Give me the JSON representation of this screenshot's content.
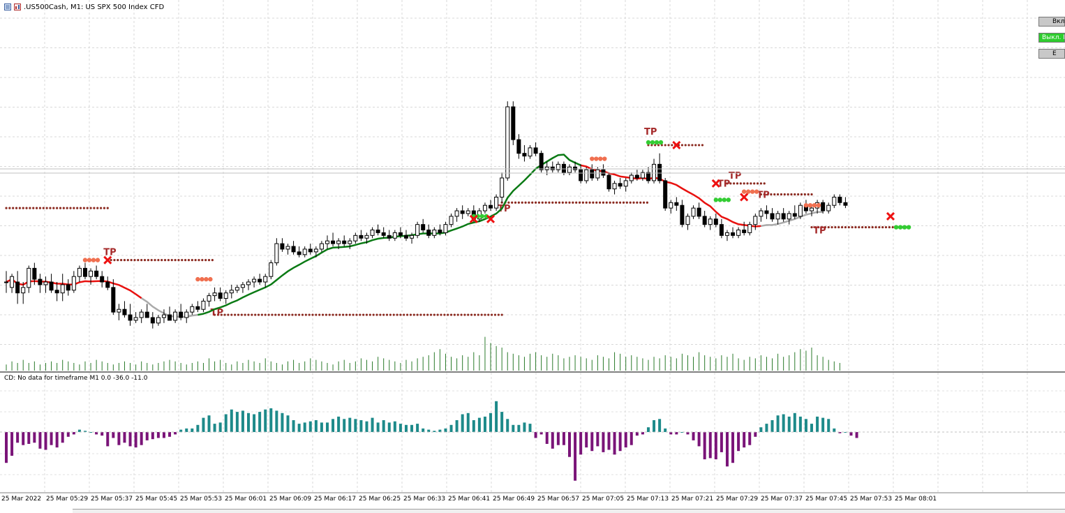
{
  "window": {
    "title": ".US500Cash, M1:  US SPX 500 Index CFD",
    "icons": [
      "chart-window-icon",
      "symbol-icon"
    ]
  },
  "subwindow": {
    "title": "CD: No data for timeframe M1 0.0 -36.0 -11.0"
  },
  "panel": {
    "buttons": [
      {
        "label": "Вкл",
        "state": "grey"
      },
      {
        "label": "Выкл. E",
        "state": "green"
      },
      {
        "label": "E",
        "state": "grey"
      }
    ]
  },
  "markers": {
    "tp_label": "TP"
  },
  "colors": {
    "bull_candle": "#ffffff",
    "bear_candle": "#000000",
    "ma_red": "#e8110f",
    "ma_green": "#0a7a14",
    "ma_grey": "#aaaaaa",
    "volume": "#2a7a2a",
    "hist_pos": "#1d8a8a",
    "hist_neg": "#7a1478",
    "tp_dots": "#8b2a20",
    "entry_red": "#f07050",
    "entry_green": "#33cc33",
    "cross": "#ee1111"
  },
  "time_axis": {
    "labels": [
      "25 Mar 2022",
      "25 Mar 05:29",
      "25 Mar 05:37",
      "25 Mar 05:45",
      "25 Mar 05:53",
      "25 Mar 06:01",
      "25 Mar 06:09",
      "25 Mar 06:17",
      "25 Mar 06:25",
      "25 Mar 06:33",
      "25 Mar 06:41",
      "25 Mar 06:49",
      "25 Mar 06:57",
      "25 Mar 07:05",
      "25 Mar 07:13",
      "25 Mar 07:21",
      "25 Mar 07:29",
      "25 Mar 07:37",
      "25 Mar 07:45",
      "25 Mar 07:53",
      "25 Mar 08:01"
    ]
  },
  "chart_data": {
    "type": "candlestick",
    "timeframe": "M1",
    "ohlc": [
      {
        "o": 0.7,
        "h": 0.74,
        "l": 0.66,
        "c": 0.7
      },
      {
        "o": 0.68,
        "h": 0.73,
        "l": 0.66,
        "c": 0.72
      },
      {
        "o": 0.7,
        "h": 0.74,
        "l": 0.62,
        "c": 0.66
      },
      {
        "o": 0.66,
        "h": 0.7,
        "l": 0.62,
        "c": 0.68
      },
      {
        "o": 0.68,
        "h": 0.76,
        "l": 0.66,
        "c": 0.75
      },
      {
        "o": 0.75,
        "h": 0.77,
        "l": 0.69,
        "c": 0.71
      },
      {
        "o": 0.71,
        "h": 0.73,
        "l": 0.66,
        "c": 0.69
      },
      {
        "o": 0.69,
        "h": 0.72,
        "l": 0.66,
        "c": 0.7
      },
      {
        "o": 0.7,
        "h": 0.73,
        "l": 0.66,
        "c": 0.67
      },
      {
        "o": 0.67,
        "h": 0.7,
        "l": 0.63,
        "c": 0.66
      },
      {
        "o": 0.66,
        "h": 0.73,
        "l": 0.63,
        "c": 0.69
      },
      {
        "o": 0.69,
        "h": 0.71,
        "l": 0.65,
        "c": 0.67
      },
      {
        "o": 0.67,
        "h": 0.74,
        "l": 0.66,
        "c": 0.72
      },
      {
        "o": 0.72,
        "h": 0.76,
        "l": 0.7,
        "c": 0.75
      },
      {
        "o": 0.75,
        "h": 0.77,
        "l": 0.71,
        "c": 0.72
      },
      {
        "o": 0.72,
        "h": 0.75,
        "l": 0.69,
        "c": 0.74
      },
      {
        "o": 0.74,
        "h": 0.76,
        "l": 0.71,
        "c": 0.72
      },
      {
        "o": 0.72,
        "h": 0.74,
        "l": 0.68,
        "c": 0.7
      },
      {
        "o": 0.7,
        "h": 0.72,
        "l": 0.67,
        "c": 0.68
      },
      {
        "o": 0.68,
        "h": 0.71,
        "l": 0.58,
        "c": 0.59
      },
      {
        "o": 0.59,
        "h": 0.62,
        "l": 0.56,
        "c": 0.6
      },
      {
        "o": 0.6,
        "h": 0.63,
        "l": 0.57,
        "c": 0.58
      },
      {
        "o": 0.58,
        "h": 0.62,
        "l": 0.54,
        "c": 0.56
      },
      {
        "o": 0.56,
        "h": 0.59,
        "l": 0.55,
        "c": 0.57
      },
      {
        "o": 0.57,
        "h": 0.6,
        "l": 0.55,
        "c": 0.59
      },
      {
        "o": 0.59,
        "h": 0.62,
        "l": 0.57,
        "c": 0.57
      },
      {
        "o": 0.57,
        "h": 0.59,
        "l": 0.53,
        "c": 0.55
      },
      {
        "o": 0.55,
        "h": 0.58,
        "l": 0.54,
        "c": 0.57
      },
      {
        "o": 0.57,
        "h": 0.6,
        "l": 0.55,
        "c": 0.58
      },
      {
        "o": 0.58,
        "h": 0.61,
        "l": 0.56,
        "c": 0.56
      },
      {
        "o": 0.56,
        "h": 0.6,
        "l": 0.55,
        "c": 0.59
      },
      {
        "o": 0.59,
        "h": 0.62,
        "l": 0.56,
        "c": 0.57
      },
      {
        "o": 0.57,
        "h": 0.6,
        "l": 0.55,
        "c": 0.59
      },
      {
        "o": 0.59,
        "h": 0.62,
        "l": 0.58,
        "c": 0.61
      },
      {
        "o": 0.61,
        "h": 0.63,
        "l": 0.59,
        "c": 0.6
      },
      {
        "o": 0.6,
        "h": 0.64,
        "l": 0.59,
        "c": 0.63
      },
      {
        "o": 0.63,
        "h": 0.66,
        "l": 0.61,
        "c": 0.65
      },
      {
        "o": 0.65,
        "h": 0.68,
        "l": 0.63,
        "c": 0.66
      },
      {
        "o": 0.66,
        "h": 0.68,
        "l": 0.63,
        "c": 0.64
      },
      {
        "o": 0.64,
        "h": 0.67,
        "l": 0.62,
        "c": 0.66
      },
      {
        "o": 0.66,
        "h": 0.69,
        "l": 0.64,
        "c": 0.67
      },
      {
        "o": 0.67,
        "h": 0.69,
        "l": 0.66,
        "c": 0.68
      },
      {
        "o": 0.68,
        "h": 0.7,
        "l": 0.66,
        "c": 0.69
      },
      {
        "o": 0.69,
        "h": 0.71,
        "l": 0.67,
        "c": 0.7
      },
      {
        "o": 0.7,
        "h": 0.72,
        "l": 0.68,
        "c": 0.71
      },
      {
        "o": 0.71,
        "h": 0.73,
        "l": 0.69,
        "c": 0.7
      },
      {
        "o": 0.7,
        "h": 0.73,
        "l": 0.68,
        "c": 0.72
      },
      {
        "o": 0.72,
        "h": 0.78,
        "l": 0.71,
        "c": 0.77
      },
      {
        "o": 0.77,
        "h": 0.86,
        "l": 0.76,
        "c": 0.84
      },
      {
        "o": 0.84,
        "h": 0.86,
        "l": 0.81,
        "c": 0.82
      },
      {
        "o": 0.82,
        "h": 0.84,
        "l": 0.8,
        "c": 0.83
      },
      {
        "o": 0.83,
        "h": 0.85,
        "l": 0.8,
        "c": 0.81
      },
      {
        "o": 0.81,
        "h": 0.83,
        "l": 0.79,
        "c": 0.8
      },
      {
        "o": 0.8,
        "h": 0.83,
        "l": 0.79,
        "c": 0.82
      },
      {
        "o": 0.82,
        "h": 0.84,
        "l": 0.8,
        "c": 0.81
      },
      {
        "o": 0.81,
        "h": 0.83,
        "l": 0.79,
        "c": 0.82
      },
      {
        "o": 0.82,
        "h": 0.85,
        "l": 0.81,
        "c": 0.84
      },
      {
        "o": 0.84,
        "h": 0.87,
        "l": 0.82,
        "c": 0.85
      },
      {
        "o": 0.85,
        "h": 0.88,
        "l": 0.83,
        "c": 0.84
      },
      {
        "o": 0.84,
        "h": 0.86,
        "l": 0.82,
        "c": 0.85
      },
      {
        "o": 0.85,
        "h": 0.87,
        "l": 0.83,
        "c": 0.84
      },
      {
        "o": 0.84,
        "h": 0.86,
        "l": 0.82,
        "c": 0.85
      },
      {
        "o": 0.85,
        "h": 0.88,
        "l": 0.84,
        "c": 0.87
      },
      {
        "o": 0.87,
        "h": 0.89,
        "l": 0.85,
        "c": 0.86
      },
      {
        "o": 0.86,
        "h": 0.88,
        "l": 0.84,
        "c": 0.87
      },
      {
        "o": 0.87,
        "h": 0.9,
        "l": 0.86,
        "c": 0.89
      },
      {
        "o": 0.89,
        "h": 0.91,
        "l": 0.87,
        "c": 0.88
      },
      {
        "o": 0.88,
        "h": 0.9,
        "l": 0.86,
        "c": 0.87
      },
      {
        "o": 0.87,
        "h": 0.89,
        "l": 0.85,
        "c": 0.86
      },
      {
        "o": 0.86,
        "h": 0.89,
        "l": 0.85,
        "c": 0.88
      },
      {
        "o": 0.88,
        "h": 0.9,
        "l": 0.86,
        "c": 0.87
      },
      {
        "o": 0.87,
        "h": 0.89,
        "l": 0.85,
        "c": 0.86
      },
      {
        "o": 0.86,
        "h": 0.88,
        "l": 0.84,
        "c": 0.87
      },
      {
        "o": 0.87,
        "h": 0.92,
        "l": 0.86,
        "c": 0.91
      },
      {
        "o": 0.91,
        "h": 0.93,
        "l": 0.88,
        "c": 0.89
      },
      {
        "o": 0.89,
        "h": 0.91,
        "l": 0.86,
        "c": 0.87
      },
      {
        "o": 0.87,
        "h": 0.9,
        "l": 0.86,
        "c": 0.89
      },
      {
        "o": 0.89,
        "h": 0.91,
        "l": 0.87,
        "c": 0.88
      },
      {
        "o": 0.88,
        "h": 0.92,
        "l": 0.87,
        "c": 0.91
      },
      {
        "o": 0.91,
        "h": 0.95,
        "l": 0.9,
        "c": 0.94
      },
      {
        "o": 0.94,
        "h": 0.97,
        "l": 0.92,
        "c": 0.96
      },
      {
        "o": 0.96,
        "h": 0.98,
        "l": 0.93,
        "c": 0.95
      },
      {
        "o": 0.95,
        "h": 0.97,
        "l": 0.94,
        "c": 0.96
      },
      {
        "o": 0.96,
        "h": 0.98,
        "l": 0.92,
        "c": 0.93
      },
      {
        "o": 0.93,
        "h": 0.97,
        "l": 0.92,
        "c": 0.96
      },
      {
        "o": 0.96,
        "h": 0.99,
        "l": 0.95,
        "c": 0.98
      },
      {
        "o": 0.98,
        "h": 1.0,
        "l": 0.96,
        "c": 0.97
      },
      {
        "o": 0.97,
        "h": 1.02,
        "l": 0.96,
        "c": 1.01
      },
      {
        "o": 1.01,
        "h": 1.1,
        "l": 0.99,
        "c": 1.08
      },
      {
        "o": 1.08,
        "h": 1.36,
        "l": 1.07,
        "c": 1.34
      },
      {
        "o": 1.34,
        "h": 1.36,
        "l": 1.2,
        "c": 1.22
      },
      {
        "o": 1.22,
        "h": 1.24,
        "l": 1.15,
        "c": 1.17
      },
      {
        "o": 1.17,
        "h": 1.2,
        "l": 1.14,
        "c": 1.16
      },
      {
        "o": 1.16,
        "h": 1.2,
        "l": 1.15,
        "c": 1.19
      },
      {
        "o": 1.19,
        "h": 1.21,
        "l": 1.16,
        "c": 1.17
      },
      {
        "o": 1.17,
        "h": 1.18,
        "l": 1.1,
        "c": 1.11
      },
      {
        "o": 1.11,
        "h": 1.14,
        "l": 1.09,
        "c": 1.12
      },
      {
        "o": 1.12,
        "h": 1.14,
        "l": 1.1,
        "c": 1.11
      },
      {
        "o": 1.11,
        "h": 1.14,
        "l": 1.1,
        "c": 1.13
      },
      {
        "o": 1.13,
        "h": 1.14,
        "l": 1.09,
        "c": 1.1
      },
      {
        "o": 1.1,
        "h": 1.13,
        "l": 1.09,
        "c": 1.12
      },
      {
        "o": 1.12,
        "h": 1.14,
        "l": 1.1,
        "c": 1.11
      },
      {
        "o": 1.11,
        "h": 1.13,
        "l": 1.06,
        "c": 1.07
      },
      {
        "o": 1.07,
        "h": 1.12,
        "l": 1.06,
        "c": 1.11
      },
      {
        "o": 1.11,
        "h": 1.13,
        "l": 1.07,
        "c": 1.08
      },
      {
        "o": 1.08,
        "h": 1.12,
        "l": 1.07,
        "c": 1.11
      },
      {
        "o": 1.11,
        "h": 1.13,
        "l": 1.08,
        "c": 1.09
      },
      {
        "o": 1.09,
        "h": 1.1,
        "l": 1.03,
        "c": 1.04
      },
      {
        "o": 1.04,
        "h": 1.07,
        "l": 1.02,
        "c": 1.06
      },
      {
        "o": 1.06,
        "h": 1.08,
        "l": 1.04,
        "c": 1.05
      },
      {
        "o": 1.05,
        "h": 1.08,
        "l": 1.03,
        "c": 1.07
      },
      {
        "o": 1.07,
        "h": 1.1,
        "l": 1.06,
        "c": 1.09
      },
      {
        "o": 1.09,
        "h": 1.11,
        "l": 1.07,
        "c": 1.08
      },
      {
        "o": 1.08,
        "h": 1.11,
        "l": 1.07,
        "c": 1.1
      },
      {
        "o": 1.1,
        "h": 1.12,
        "l": 1.06,
        "c": 1.07
      },
      {
        "o": 1.07,
        "h": 1.15,
        "l": 1.06,
        "c": 1.13
      },
      {
        "o": 1.13,
        "h": 1.17,
        "l": 1.06,
        "c": 1.07
      },
      {
        "o": 1.07,
        "h": 1.08,
        "l": 0.96,
        "c": 0.97
      },
      {
        "o": 0.97,
        "h": 1.0,
        "l": 0.95,
        "c": 0.99
      },
      {
        "o": 0.99,
        "h": 1.01,
        "l": 0.96,
        "c": 0.98
      },
      {
        "o": 0.98,
        "h": 1.0,
        "l": 0.9,
        "c": 0.91
      },
      {
        "o": 0.91,
        "h": 0.95,
        "l": 0.89,
        "c": 0.94
      },
      {
        "o": 0.94,
        "h": 0.98,
        "l": 0.93,
        "c": 0.97
      },
      {
        "o": 0.97,
        "h": 0.99,
        "l": 0.93,
        "c": 0.94
      },
      {
        "o": 0.94,
        "h": 0.96,
        "l": 0.9,
        "c": 0.91
      },
      {
        "o": 0.91,
        "h": 0.94,
        "l": 0.89,
        "c": 0.93
      },
      {
        "o": 0.93,
        "h": 0.95,
        "l": 0.9,
        "c": 0.91
      },
      {
        "o": 0.91,
        "h": 0.93,
        "l": 0.86,
        "c": 0.87
      },
      {
        "o": 0.87,
        "h": 0.89,
        "l": 0.85,
        "c": 0.88
      },
      {
        "o": 0.88,
        "h": 0.9,
        "l": 0.86,
        "c": 0.87
      },
      {
        "o": 0.87,
        "h": 0.9,
        "l": 0.86,
        "c": 0.89
      },
      {
        "o": 0.89,
        "h": 0.92,
        "l": 0.87,
        "c": 0.88
      },
      {
        "o": 0.88,
        "h": 0.92,
        "l": 0.87,
        "c": 0.91
      },
      {
        "o": 0.91,
        "h": 0.95,
        "l": 0.89,
        "c": 0.94
      },
      {
        "o": 0.94,
        "h": 0.97,
        "l": 0.92,
        "c": 0.96
      },
      {
        "o": 0.96,
        "h": 0.98,
        "l": 0.93,
        "c": 0.95
      },
      {
        "o": 0.95,
        "h": 0.97,
        "l": 0.92,
        "c": 0.93
      },
      {
        "o": 0.93,
        "h": 0.96,
        "l": 0.91,
        "c": 0.95
      },
      {
        "o": 0.95,
        "h": 0.97,
        "l": 0.92,
        "c": 0.93
      },
      {
        "o": 0.93,
        "h": 0.96,
        "l": 0.91,
        "c": 0.95
      },
      {
        "o": 0.95,
        "h": 0.98,
        "l": 0.93,
        "c": 0.94
      },
      {
        "o": 0.94,
        "h": 0.99,
        "l": 0.93,
        "c": 0.98
      },
      {
        "o": 0.98,
        "h": 1.0,
        "l": 0.95,
        "c": 0.96
      },
      {
        "o": 0.96,
        "h": 0.98,
        "l": 0.94,
        "c": 0.97
      },
      {
        "o": 0.97,
        "h": 1.0,
        "l": 0.95,
        "c": 0.99
      },
      {
        "o": 0.99,
        "h": 1.0,
        "l": 0.95,
        "c": 0.96
      },
      {
        "o": 0.96,
        "h": 0.99,
        "l": 0.95,
        "c": 0.98
      },
      {
        "o": 0.98,
        "h": 1.02,
        "l": 0.97,
        "c": 1.01
      },
      {
        "o": 1.01,
        "h": 1.02,
        "l": 0.98,
        "c": 0.99
      },
      {
        "o": 0.99,
        "h": 1.01,
        "l": 0.97,
        "c": 0.98
      }
    ],
    "volume": [
      4,
      6,
      5,
      7,
      5,
      6,
      4,
      5,
      6,
      5,
      7,
      6,
      5,
      4,
      6,
      5,
      7,
      6,
      5,
      4,
      5,
      6,
      5,
      4,
      6,
      5,
      4,
      5,
      6,
      7,
      6,
      5,
      4,
      5,
      6,
      5,
      8,
      6,
      7,
      5,
      4,
      6,
      5,
      7,
      6,
      5,
      8,
      6,
      5,
      4,
      6,
      7,
      5,
      6,
      8,
      7,
      6,
      5,
      4,
      6,
      7,
      5,
      6,
      8,
      7,
      6,
      9,
      8,
      7,
      6,
      5,
      7,
      6,
      8,
      9,
      10,
      12,
      14,
      11,
      9,
      8,
      10,
      9,
      12,
      10,
      22,
      18,
      16,
      15,
      12,
      11,
      10,
      9,
      11,
      12,
      10,
      9,
      11,
      10,
      8,
      9,
      10,
      9,
      8,
      7,
      10,
      9,
      8,
      12,
      11,
      9,
      10,
      9,
      8,
      7,
      9,
      8,
      10,
      9,
      8,
      11,
      10,
      9,
      12,
      10,
      9,
      8,
      10,
      9,
      11,
      8,
      7,
      9,
      8,
      10,
      9,
      8,
      11,
      9,
      10,
      12,
      14,
      13,
      15,
      10,
      9,
      7,
      6,
      5
    ],
    "ma_segments": [
      {
        "color": "red",
        "from": 0,
        "to": 24
      },
      {
        "color": "grey",
        "from": 24,
        "to": 34
      },
      {
        "color": "green",
        "from": 34,
        "to": 102
      },
      {
        "color": "red",
        "from": 102,
        "to": 134
      },
      {
        "color": "grey",
        "from": 134,
        "to": 145
      }
    ],
    "histogram": [
      -26,
      -20,
      -9,
      -11,
      -10,
      -9,
      -14,
      -15,
      -11,
      -13,
      -9,
      -4,
      -2,
      2,
      1,
      0,
      -2,
      -3,
      -12,
      -5,
      -11,
      -9,
      -12,
      -13,
      -11,
      -7,
      -6,
      -5,
      -5,
      -4,
      -2,
      2,
      3,
      3,
      6,
      12,
      14,
      7,
      8,
      15,
      19,
      17,
      18,
      16,
      15,
      17,
      19,
      20,
      18,
      16,
      14,
      10,
      7,
      8,
      9,
      10,
      8,
      8,
      11,
      13,
      11,
      12,
      11,
      10,
      9,
      12,
      8,
      10,
      8,
      9,
      7,
      6,
      6,
      7,
      3,
      2,
      1,
      2,
      3,
      6,
      10,
      15,
      16,
      10,
      12,
      13,
      16,
      26,
      17,
      11,
      6,
      6,
      8,
      7,
      -5,
      -2,
      -10,
      -14,
      -11,
      -11,
      -21,
      -41,
      -19,
      -13,
      -16,
      -12,
      -17,
      -15,
      -19,
      -16,
      -13,
      -11,
      -3,
      -2,
      4,
      10,
      11,
      3,
      -2,
      -2,
      0,
      -2,
      -7,
      -12,
      -23,
      -22,
      -23,
      -17,
      -29,
      -26,
      -16,
      -13,
      -11,
      -4,
      4,
      7,
      10,
      14,
      15,
      13,
      16,
      13,
      11,
      7,
      13,
      12,
      11,
      3,
      -1,
      0,
      -3,
      -5
    ]
  }
}
